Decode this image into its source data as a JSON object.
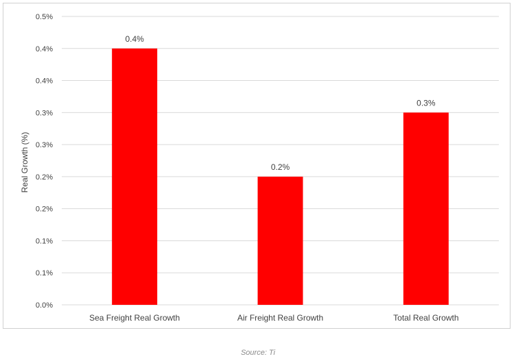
{
  "chart_data": {
    "type": "bar",
    "categories": [
      "Sea Freight Real Growth",
      "Air Freight Real Growth",
      "Total Real Growth"
    ],
    "values": [
      0.4,
      0.2,
      0.3
    ],
    "data_labels": [
      "0.4%",
      "0.2%",
      "0.3%"
    ],
    "ylabel": "Real Growth (%)",
    "xlabel": "",
    "ylim": [
      0,
      0.45
    ],
    "y_ticks": [
      {
        "value": 0.0,
        "label": "0.0%"
      },
      {
        "value": 0.05,
        "label": "0.1%"
      },
      {
        "value": 0.1,
        "label": "0.1%"
      },
      {
        "value": 0.15,
        "label": "0.2%"
      },
      {
        "value": 0.2,
        "label": "0.2%"
      },
      {
        "value": 0.25,
        "label": "0.3%"
      },
      {
        "value": 0.3,
        "label": "0.3%"
      },
      {
        "value": 0.35,
        "label": "0.4%"
      },
      {
        "value": 0.4,
        "label": "0.4%"
      },
      {
        "value": 0.45,
        "label": "0.5%"
      }
    ],
    "grid": true,
    "legend": "none",
    "bar_color": "#ff0000",
    "grid_color": "#d9d9d9"
  },
  "source": "Source: Ti"
}
